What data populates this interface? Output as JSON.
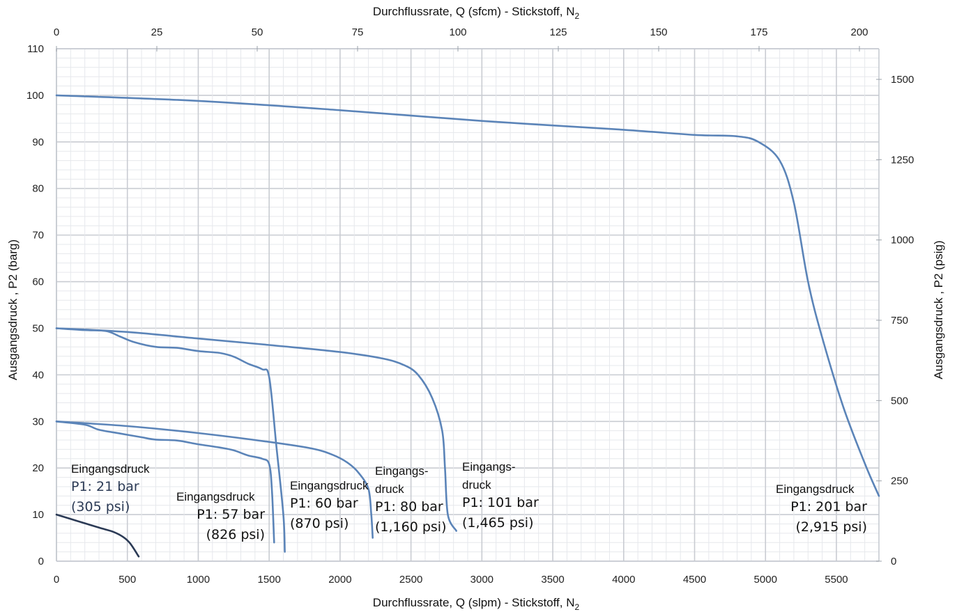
{
  "chart_data": {
    "type": "line",
    "title": "",
    "xlabel": "Durchflussrate, Q (slpm) - Stickstoff, N",
    "xlabel_sub": "2",
    "x2label": "Durchflussrate, Q (sfcm) - Stickstoff, N",
    "x2label_sub": "2",
    "ylabel": "Ausgangsdruck  , P2 (barg)",
    "y2label": "Ausgangsdruck  , P2 (psig)",
    "xlim": [
      0,
      5800
    ],
    "ylim": [
      0,
      110
    ],
    "x2lim": [
      0,
      205
    ],
    "y2lim": [
      0,
      1600
    ],
    "x_ticks": [
      "0",
      "500",
      "1000",
      "1500",
      "2000",
      "2500",
      "3000",
      "3500",
      "4000",
      "4500",
      "5000",
      "5500"
    ],
    "y_ticks": [
      "0",
      "10",
      "20",
      "30",
      "40",
      "50",
      "60",
      "70",
      "80",
      "90",
      "100",
      "110"
    ],
    "x2_ticks": [
      "0",
      "25",
      "50",
      "75",
      "100",
      "125",
      "150",
      "175",
      "200"
    ],
    "y2_ticks": [
      "0",
      "250",
      "500",
      "750",
      "1000",
      "1250",
      "1500"
    ],
    "grid": true,
    "series": [
      {
        "label_lines": [
          "Eingangsdruck",
          "P1: 21 bar",
          "(305 psi)"
        ],
        "color": "#2b3a55",
        "points": [
          [
            0,
            10
          ],
          [
            150,
            8.6
          ],
          [
            300,
            7.2
          ],
          [
            400,
            6.3
          ],
          [
            470,
            5.2
          ],
          [
            520,
            3.8
          ],
          [
            580,
            1.0
          ]
        ]
      },
      {
        "label_lines": [
          "Eingangsdruck",
          "P1: 57 bar",
          "(826 psi)"
        ],
        "color": "#5b84b8",
        "points": [
          [
            0,
            30
          ],
          [
            200,
            29.3
          ],
          [
            300,
            28.2
          ],
          [
            450,
            27.4
          ],
          [
            600,
            26.6
          ],
          [
            700,
            26.1
          ],
          [
            850,
            25.9
          ],
          [
            1000,
            25.1
          ],
          [
            1150,
            24.4
          ],
          [
            1250,
            23.8
          ],
          [
            1350,
            22.7
          ],
          [
            1450,
            22.0
          ],
          [
            1500,
            20.8
          ],
          [
            1520,
            15.0
          ],
          [
            1535,
            4.0
          ]
        ]
      },
      {
        "label_lines": [
          "Eingangsdruck",
          "P1: 60 bar",
          "(870 psi)"
        ],
        "color": "#5b84b8",
        "points": [
          [
            0,
            50
          ],
          [
            200,
            49.6
          ],
          [
            350,
            49.4
          ],
          [
            450,
            48.2
          ],
          [
            550,
            47.0
          ],
          [
            700,
            46.0
          ],
          [
            850,
            45.8
          ],
          [
            1000,
            45.1
          ],
          [
            1150,
            44.7
          ],
          [
            1250,
            43.9
          ],
          [
            1350,
            42.4
          ],
          [
            1450,
            41.2
          ],
          [
            1500,
            39.5
          ],
          [
            1550,
            25.0
          ],
          [
            1600,
            10.0
          ],
          [
            1610,
            2.0
          ]
        ]
      },
      {
        "label_lines": [
          "Eingangs-",
          "druck",
          "P1: 80 bar",
          "(1,160 psi)"
        ],
        "color": "#5b84b8",
        "points": [
          [
            0,
            30
          ],
          [
            500,
            29.0
          ],
          [
            1000,
            27.5
          ],
          [
            1500,
            25.6
          ],
          [
            1800,
            24.2
          ],
          [
            1950,
            22.8
          ],
          [
            2050,
            21.2
          ],
          [
            2130,
            19.0
          ],
          [
            2200,
            15.5
          ],
          [
            2220,
            10.0
          ],
          [
            2230,
            5.0
          ]
        ]
      },
      {
        "label_lines": [
          "Eingangs-",
          "druck",
          "P1: 101 bar",
          "(1,465 psi)"
        ],
        "color": "#5b84b8",
        "points": [
          [
            0,
            50
          ],
          [
            500,
            49.2
          ],
          [
            1000,
            47.8
          ],
          [
            1500,
            46.4
          ],
          [
            2000,
            44.9
          ],
          [
            2300,
            43.5
          ],
          [
            2450,
            42.1
          ],
          [
            2550,
            40.0
          ],
          [
            2650,
            35.0
          ],
          [
            2720,
            28.0
          ],
          [
            2740,
            20.0
          ],
          [
            2760,
            10.0
          ],
          [
            2820,
            6.5
          ]
        ]
      },
      {
        "label_lines": [
          "Eingangsdruck",
          "P1: 201 bar",
          "(2,915 psi)"
        ],
        "color": "#5b84b8",
        "points": [
          [
            0,
            100
          ],
          [
            1000,
            98.8
          ],
          [
            2000,
            96.8
          ],
          [
            3000,
            94.5
          ],
          [
            4000,
            92.6
          ],
          [
            4500,
            91.5
          ],
          [
            4800,
            91.2
          ],
          [
            4950,
            90.0
          ],
          [
            5100,
            86.0
          ],
          [
            5200,
            77.0
          ],
          [
            5300,
            60.0
          ],
          [
            5400,
            48.0
          ],
          [
            5550,
            33.0
          ],
          [
            5700,
            21.0
          ],
          [
            5800,
            14.0
          ]
        ]
      }
    ]
  }
}
